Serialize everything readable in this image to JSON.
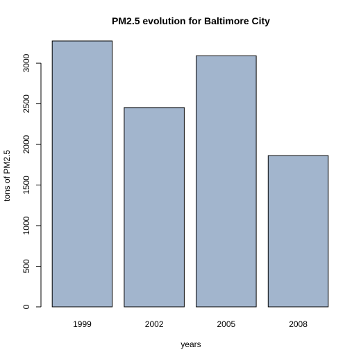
{
  "chart_data": {
    "type": "bar",
    "title": "PM2.5 evolution for Baltimore City",
    "xlabel": "years",
    "ylabel": "tons of PM2.5",
    "categories": [
      "1999",
      "2002",
      "2005",
      "2008"
    ],
    "values": [
      3274,
      2454,
      3091,
      1862
    ],
    "ylim": [
      0,
      3300
    ],
    "yticks": [
      0,
      500,
      1000,
      1500,
      2000,
      2500,
      3000
    ],
    "bar_color": "#a2b5cd",
    "bar_edge_color": "#000000",
    "grid": false,
    "legend": "none"
  }
}
